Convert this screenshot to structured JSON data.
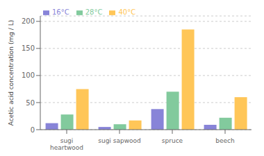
{
  "chart_data": {
    "type": "bar",
    "categories": [
      "sugi\nheartwood",
      "sugi sapwood",
      "spruce",
      "beech"
    ],
    "series": [
      {
        "name": "16°C",
        "color": "#8884d8",
        "values": [
          12,
          5,
          38,
          9
        ]
      },
      {
        "name": "28°C",
        "color": "#82ca9d",
        "values": [
          28,
          10,
          70,
          22
        ]
      },
      {
        "name": "40°C",
        "color": "#ffc658",
        "values": [
          75,
          17,
          185,
          60
        ]
      }
    ],
    "ylabel": "Acetic acid concentration (mg / L)",
    "ylim": [
      0,
      210
    ],
    "yticks": [
      0,
      50,
      100,
      150,
      200
    ],
    "grid": true,
    "legend": "upper left"
  }
}
